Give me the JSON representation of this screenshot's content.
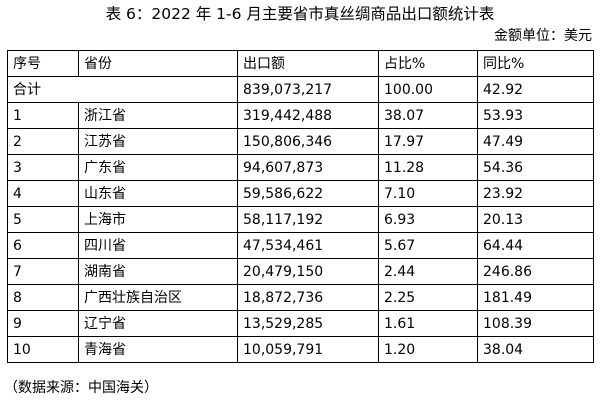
{
  "title": "表 6：2022 年 1-6 月主要省市真丝绸商品出口额统计表",
  "unit_note": "金额单位：美元",
  "table": {
    "headers": [
      "序号",
      "省份",
      "出口额",
      "占比%",
      "同比%"
    ],
    "total_row": {
      "label": "合计",
      "export_amount": "839,073,217",
      "share": "100.00",
      "yoy": "42.92"
    },
    "rows": [
      {
        "no": "1",
        "province": "浙江省",
        "export_amount": "319,442,488",
        "share": "38.07",
        "yoy": "53.93"
      },
      {
        "no": "2",
        "province": "江苏省",
        "export_amount": "150,806,346",
        "share": "17.97",
        "yoy": "47.49"
      },
      {
        "no": "3",
        "province": "广东省",
        "export_amount": "94,607,873",
        "share": "11.28",
        "yoy": "54.36"
      },
      {
        "no": "4",
        "province": "山东省",
        "export_amount": "59,586,622",
        "share": "7.10",
        "yoy": "23.92"
      },
      {
        "no": "5",
        "province": "上海市",
        "export_amount": "58,117,192",
        "share": "6.93",
        "yoy": "20.13"
      },
      {
        "no": "6",
        "province": "四川省",
        "export_amount": "47,534,461",
        "share": "5.67",
        "yoy": "64.44"
      },
      {
        "no": "7",
        "province": "湖南省",
        "export_amount": "20,479,150",
        "share": "2.44",
        "yoy": "246.86"
      },
      {
        "no": "8",
        "province": "广西壮族自治区",
        "export_amount": "18,872,736",
        "share": "2.25",
        "yoy": "181.49"
      },
      {
        "no": "9",
        "province": "辽宁省",
        "export_amount": "13,529,285",
        "share": "1.61",
        "yoy": "108.39"
      },
      {
        "no": "10",
        "province": "青海省",
        "export_amount": "10,059,791",
        "share": "1.20",
        "yoy": "38.04"
      }
    ]
  },
  "source": "（数据来源：中国海关）"
}
